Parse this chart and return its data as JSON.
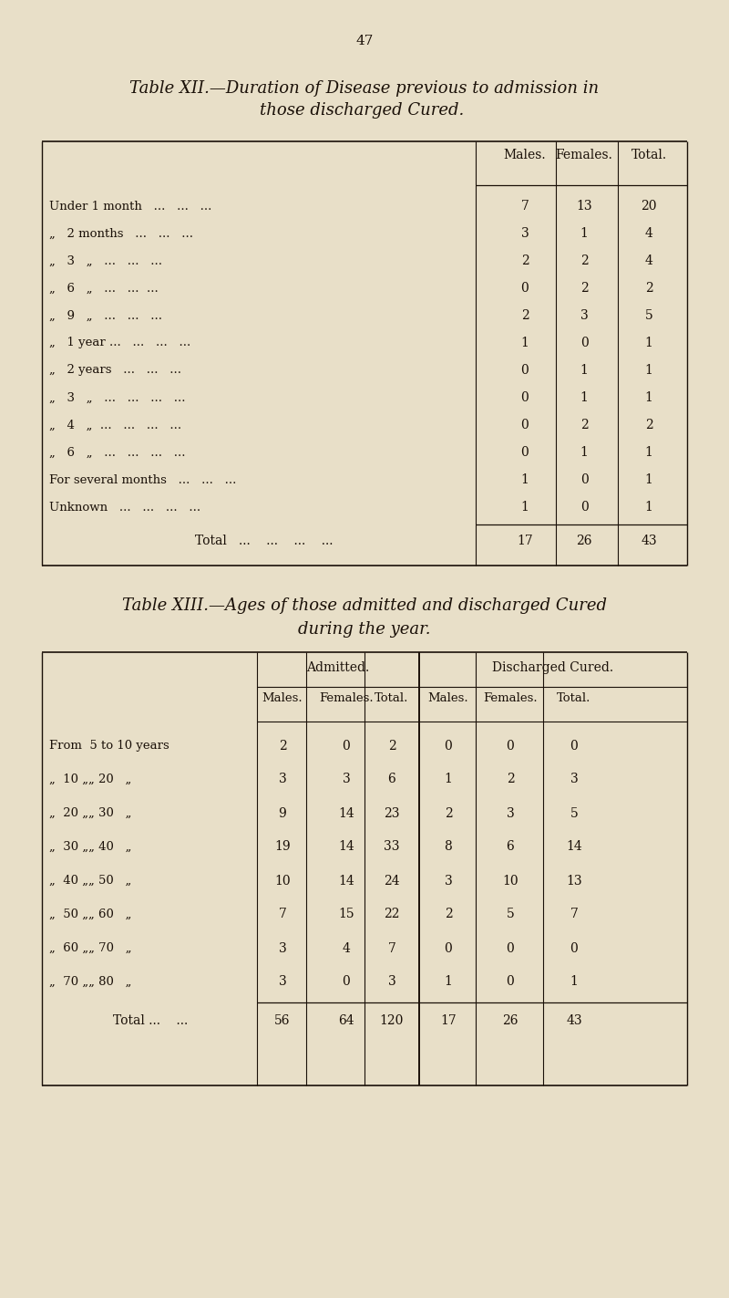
{
  "page_number": "47",
  "bg_color": "#e8dfc8",
  "text_color": "#1a1008",
  "table12_title_line1": "Table XII.—Duration of Disease previous to admission in",
  "table12_title_line2": "those discharged Cured. ",
  "table12_row_labels": [
    "Under 1 month   ...   ...   ...",
    "„   2 months   ...   ...   ...",
    "„   3   „   ...   ...   ...",
    "„   6   „   ...   ...  ...",
    "„   9   „   ...   ...   ...",
    "„   1 year ...   ...   ...   ...",
    "„   2 years   ...   ...   ...",
    "„   3   „   ...   ...   ...   ...",
    "„   4   „  ...   ...   ...   ...",
    "„   6   „   ...   ...   ...   ...",
    "For several months   ...   ...   ...",
    "Unknown   ...   ...   ...   ..."
  ],
  "table12_males": [
    "7",
    "3",
    "2",
    "0",
    "2",
    "1",
    "0",
    "0",
    "0",
    "0",
    "1",
    "1"
  ],
  "table12_females": [
    "13",
    "1",
    "2",
    "2",
    "3",
    "0",
    "1",
    "1",
    "2",
    "1",
    "0",
    "0"
  ],
  "table12_totals": [
    "20",
    "4",
    "4",
    "2",
    "5",
    "1",
    "1",
    "1",
    "2",
    "1",
    "1",
    "1"
  ],
  "table12_total_row": [
    "17",
    "26",
    "43"
  ],
  "table13_title_line1": "Table XIII.—Ages of those admitted and discharged Cured",
  "table13_title_line2": "during the year.",
  "table13_row_labels": [
    "From  5 to 10 years",
    "„  10 „„ 20   „",
    "„  20 „„ 30   „",
    "„  30 „„ 40   „",
    "„  40 „„ 50   „",
    "„  50 „„ 60   „",
    "„  60 „„ 70   „",
    "„  70 „„ 80   „"
  ],
  "table13_adm_m": [
    "2",
    "3",
    "9",
    "19",
    "10",
    "7",
    "3",
    "3"
  ],
  "table13_adm_f": [
    "0",
    "3",
    "14",
    "14",
    "14",
    "15",
    "4",
    "0"
  ],
  "table13_adm_t": [
    "2",
    "6",
    "23",
    "33",
    "24",
    "22",
    "7",
    "3"
  ],
  "table13_dis_m": [
    "0",
    "1",
    "2",
    "8",
    "3",
    "2",
    "0",
    "1"
  ],
  "table13_dis_f": [
    "0",
    "2",
    "3",
    "6",
    "10",
    "5",
    "0",
    "0"
  ],
  "table13_dis_t": [
    "0",
    "3",
    "5",
    "14",
    "13",
    "7",
    "0",
    "1"
  ],
  "table13_total_row": [
    "56",
    "64",
    "120",
    "17",
    "26",
    "43"
  ]
}
